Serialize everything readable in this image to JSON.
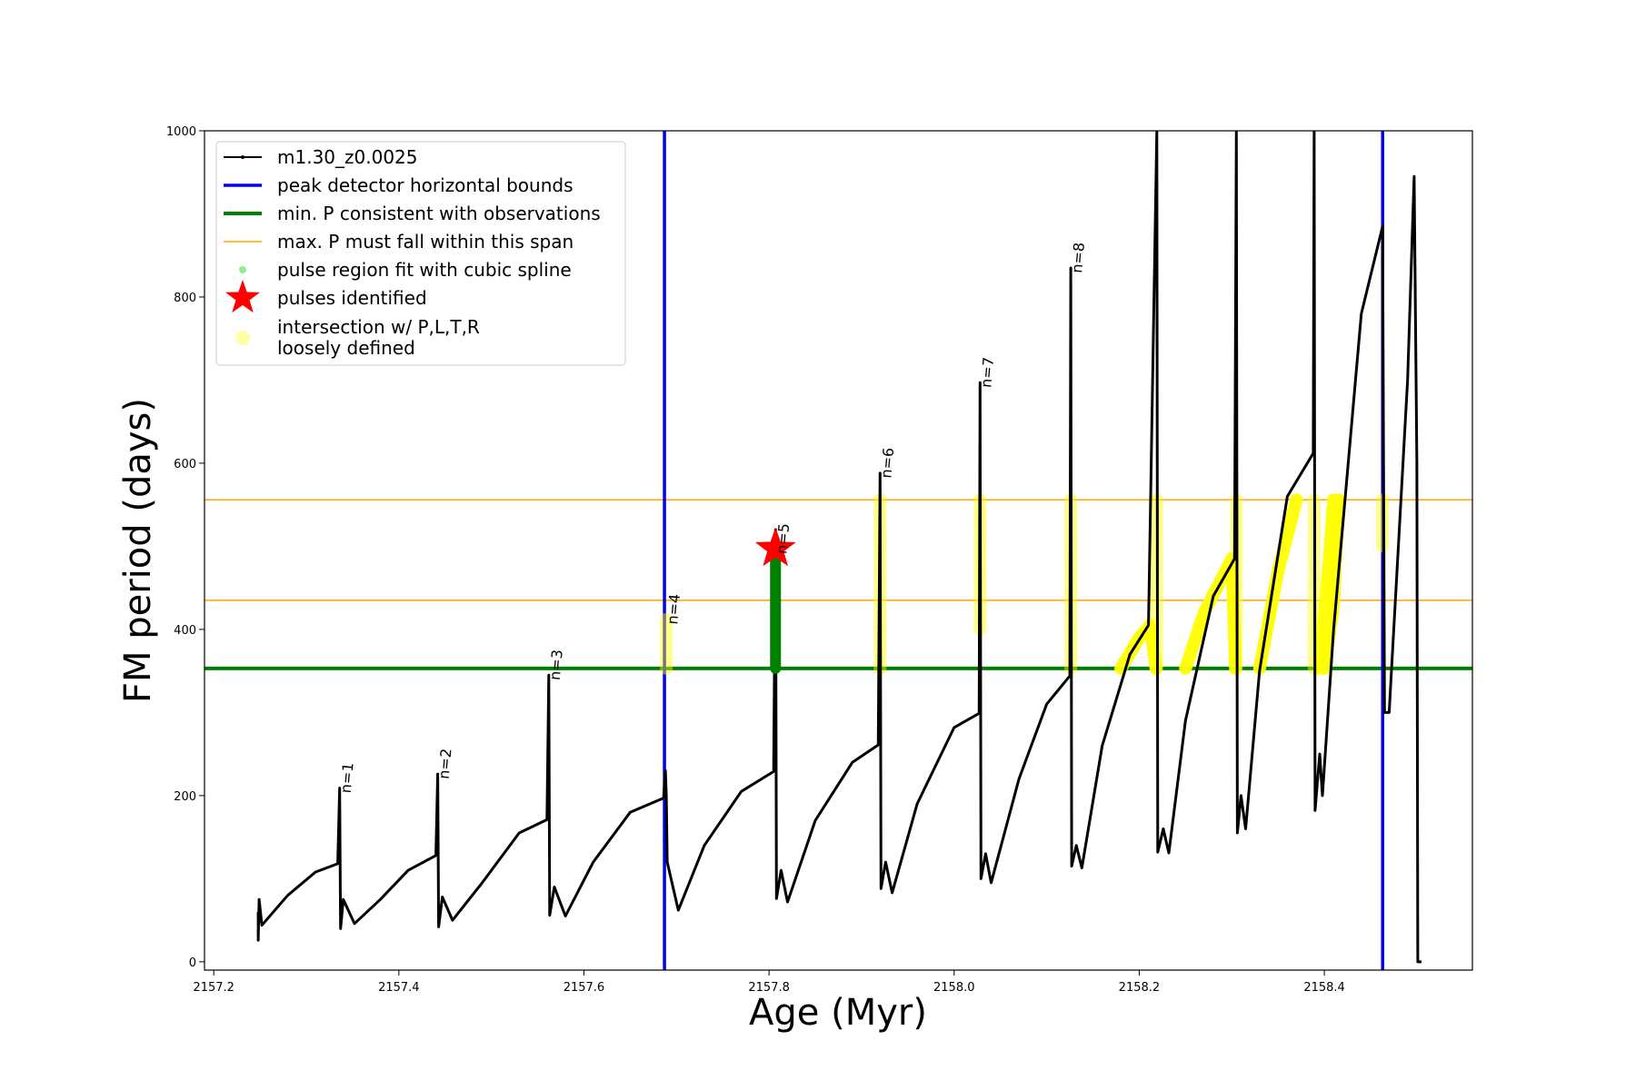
{
  "chart_data": {
    "type": "line",
    "title": "",
    "xlabel": "Age (Myr)",
    "ylabel": "FM period (days)",
    "xlim": [
      2157.19,
      2158.56
    ],
    "ylim": [
      -10,
      1000
    ],
    "xticks": [
      2157.2,
      2157.4,
      2157.6,
      2157.8,
      2158.0,
      2158.2,
      2158.4
    ],
    "xtick_labels": [
      "2157.2",
      "2157.4",
      "2157.6",
      "2157.8",
      "2158.0",
      "2158.2",
      "2158.4"
    ],
    "yticks": [
      0,
      200,
      400,
      600,
      800,
      1000
    ],
    "ytick_labels": [
      "0",
      "200",
      "400",
      "600",
      "800",
      "1000"
    ],
    "grid": false,
    "legend_position": "top-left",
    "colors": {
      "track": "#000000",
      "bounds": "#0000ee",
      "min_p": "#008000",
      "max_p": "#ffa500",
      "spline": "#90ee90",
      "pulse": "#ff0000",
      "intersection": "#ffff00"
    },
    "legend": [
      {
        "key": "track",
        "label": "m1.30_z0.0025"
      },
      {
        "key": "bounds",
        "label": "peak detector horizontal bounds"
      },
      {
        "key": "min_p",
        "label": "min. P consistent with observations"
      },
      {
        "key": "max_p",
        "label": "max. P must fall within this span"
      },
      {
        "key": "spline",
        "label": "pulse region fit with cubic spline"
      },
      {
        "key": "pulse",
        "label": "pulses identified"
      },
      {
        "key": "intersection",
        "label": "intersection w/ P,L,T,R",
        "label2": "loosely defined"
      }
    ],
    "vertical_bounds": [
      2157.687,
      2158.463
    ],
    "min_p": 353,
    "max_p_span": [
      435,
      556
    ],
    "series": [
      {
        "name": "m1.30_z0.0025",
        "points": [
          [
            2157.248,
            60
          ],
          [
            2157.248,
            26
          ],
          [
            2157.249,
            75
          ],
          [
            2157.252,
            44
          ],
          [
            2157.28,
            80
          ],
          [
            2157.31,
            108
          ],
          [
            2157.334,
            118
          ],
          [
            2157.336,
            209
          ],
          [
            2157.337,
            40
          ],
          [
            2157.34,
            75
          ],
          [
            2157.352,
            46
          ],
          [
            2157.38,
            75
          ],
          [
            2157.41,
            110
          ],
          [
            2157.44,
            128
          ],
          [
            2157.442,
            226
          ],
          [
            2157.443,
            42
          ],
          [
            2157.447,
            78
          ],
          [
            2157.458,
            50
          ],
          [
            2157.49,
            95
          ],
          [
            2157.53,
            155
          ],
          [
            2157.56,
            171
          ],
          [
            2157.562,
            345
          ],
          [
            2157.563,
            56
          ],
          [
            2157.568,
            90
          ],
          [
            2157.58,
            55
          ],
          [
            2157.61,
            120
          ],
          [
            2157.65,
            180
          ],
          [
            2157.686,
            197
          ],
          [
            2157.688,
            230
          ],
          [
            2157.689,
            200
          ],
          [
            2157.69,
            120
          ],
          [
            2157.702,
            62
          ],
          [
            2157.73,
            140
          ],
          [
            2157.77,
            205
          ],
          [
            2157.805,
            229
          ],
          [
            2157.807,
            520
          ],
          [
            2157.808,
            76
          ],
          [
            2157.813,
            110
          ],
          [
            2157.82,
            72
          ],
          [
            2157.85,
            170
          ],
          [
            2157.89,
            240
          ],
          [
            2157.918,
            261
          ],
          [
            2157.92,
            588
          ],
          [
            2157.921,
            88
          ],
          [
            2157.926,
            120
          ],
          [
            2157.933,
            83
          ],
          [
            2157.96,
            190
          ],
          [
            2158.0,
            282
          ],
          [
            2158.027,
            299
          ],
          [
            2158.028,
            697
          ],
          [
            2158.029,
            100
          ],
          [
            2158.034,
            130
          ],
          [
            2158.04,
            95
          ],
          [
            2158.07,
            220
          ],
          [
            2158.1,
            310
          ],
          [
            2158.125,
            344
          ],
          [
            2158.126,
            835
          ],
          [
            2158.127,
            115
          ],
          [
            2158.132,
            140
          ],
          [
            2158.138,
            113
          ],
          [
            2158.16,
            260
          ],
          [
            2158.19,
            370
          ],
          [
            2158.21,
            405
          ],
          [
            2158.219,
            1000
          ],
          [
            2158.22,
            132
          ],
          [
            2158.226,
            160
          ],
          [
            2158.232,
            131
          ],
          [
            2158.25,
            290
          ],
          [
            2158.28,
            440
          ],
          [
            2158.303,
            485
          ],
          [
            2158.305,
            1000
          ],
          [
            2158.306,
            155
          ],
          [
            2158.31,
            200
          ],
          [
            2158.315,
            160
          ],
          [
            2158.33,
            350
          ],
          [
            2158.36,
            560
          ],
          [
            2158.388,
            612
          ],
          [
            2158.389,
            1000
          ],
          [
            2158.39,
            182
          ],
          [
            2158.395,
            250
          ],
          [
            2158.398,
            200
          ],
          [
            2158.41,
            400
          ],
          [
            2158.44,
            780
          ],
          [
            2158.463,
            885
          ],
          [
            2158.465,
            300
          ],
          [
            2158.47,
            300
          ],
          [
            2158.49,
            700
          ],
          [
            2158.497,
            945
          ],
          [
            2158.5,
            600
          ],
          [
            2158.501,
            0
          ],
          [
            2158.505,
            0
          ]
        ]
      }
    ],
    "pulse_identified": [
      {
        "x": 2157.807,
        "y": 497
      }
    ],
    "spline_segments": [
      {
        "x": 2157.807,
        "y_min": 353,
        "y_max": 497
      }
    ],
    "intersection_segments": [
      {
        "x": 2157.689,
        "y_min": 353,
        "y_max": 412
      },
      {
        "x": 2157.92,
        "y_min": 353,
        "y_max": 556
      },
      {
        "x": 2158.028,
        "y_min": 400,
        "y_max": 556
      },
      {
        "x": 2158.126,
        "y_min": 353,
        "y_max": 556
      },
      {
        "x": 2158.219,
        "y_min": 353,
        "y_max": 556
      },
      {
        "x": 2158.305,
        "y_min": 353,
        "y_max": 556
      },
      {
        "x": 2158.389,
        "y_min": 353,
        "y_max": 556
      },
      {
        "x": 2158.463,
        "y_min": 500,
        "y_max": 556
      }
    ],
    "intersection_curves": [
      [
        [
          2158.18,
          353
        ],
        [
          2158.2,
          390
        ],
        [
          2158.212,
          405
        ],
        [
          2158.218,
          353
        ]
      ],
      [
        [
          2158.25,
          353
        ],
        [
          2158.27,
          420
        ],
        [
          2158.3,
          485
        ],
        [
          2158.304,
          353
        ]
      ],
      [
        [
          2158.33,
          353
        ],
        [
          2158.35,
          470
        ],
        [
          2158.37,
          556
        ]
      ],
      [
        [
          2158.395,
          353
        ],
        [
          2158.405,
          480
        ],
        [
          2158.41,
          556
        ]
      ],
      [
        [
          2158.4,
          353
        ],
        [
          2158.41,
          430
        ],
        [
          2158.415,
          556
        ]
      ]
    ],
    "annotations": [
      {
        "text": "n=1",
        "x": 2157.336,
        "y": 209
      },
      {
        "text": "n=2",
        "x": 2157.442,
        "y": 226
      },
      {
        "text": "n=3",
        "x": 2157.562,
        "y": 345
      },
      {
        "text": "n=4",
        "x": 2157.689,
        "y": 412
      },
      {
        "text": "n=5",
        "x": 2157.807,
        "y": 497
      },
      {
        "text": "n=6",
        "x": 2157.92,
        "y": 588
      },
      {
        "text": "n=7",
        "x": 2158.028,
        "y": 697
      },
      {
        "text": "n=8",
        "x": 2158.126,
        "y": 835
      }
    ]
  }
}
